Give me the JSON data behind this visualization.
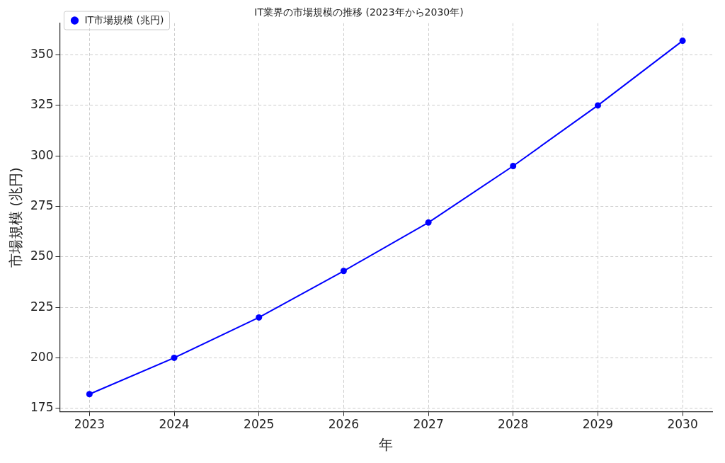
{
  "chart_data": {
    "type": "line",
    "title": "IT業界の市場規模の推移 (2023年から2030年)",
    "xlabel": "年",
    "ylabel": "市場規模 (兆円)",
    "x": [
      2023,
      2024,
      2025,
      2026,
      2027,
      2028,
      2029,
      2030
    ],
    "series": [
      {
        "name": "IT市場規模 (兆円)",
        "color": "#0000ff",
        "values": [
          182,
          200,
          220,
          243,
          267,
          295,
          325,
          357
        ]
      }
    ],
    "xlim": [
      2022.65,
      2030.35
    ],
    "xticks": [
      2023,
      2024,
      2025,
      2026,
      2027,
      2028,
      2029,
      2030
    ],
    "ylim": [
      173.3,
      365.7
    ],
    "yticks": [
      175,
      200,
      225,
      250,
      275,
      300,
      325,
      350
    ],
    "grid": true,
    "legend": "top left",
    "marker": "circle",
    "line_style": "solid"
  }
}
